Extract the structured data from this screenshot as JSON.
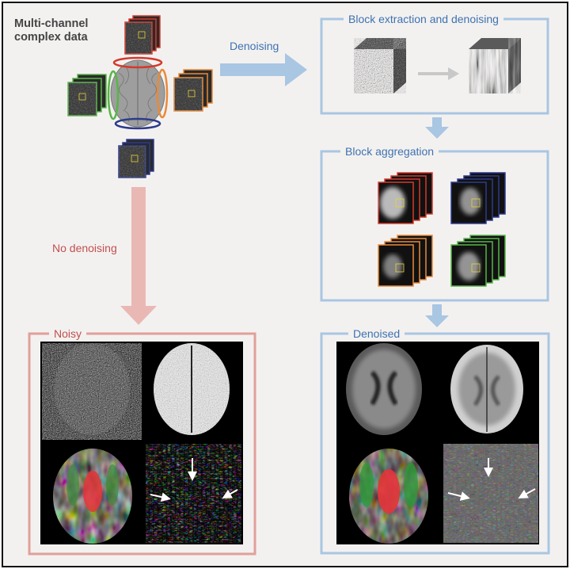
{
  "title_line1": "Multi-channel",
  "title_line2": "complex data",
  "label_denoising": "Denoising",
  "label_no_denoising": "No denoising",
  "box_block_extraction": "Block extraction and denoising",
  "box_block_aggregation": "Block aggregation",
  "box_noisy": "Noisy",
  "box_denoised": "Denoised",
  "colors": {
    "blue_accent": "#3e72b0",
    "blue_arrow": "#a9c6e2",
    "blue_frame": "#8fb2d8",
    "red_accent": "#c0504d",
    "red_arrow": "#eab8b4",
    "red_frame": "#e0a09a",
    "channel_red": "#d33a2c",
    "channel_green": "#58b648",
    "channel_orange": "#e88a3a",
    "channel_blue": "#2d3a8c"
  },
  "icons": [
    "brain-icon",
    "image-stack-icon",
    "noise-cube-icon",
    "mri-image-icon",
    "white-arrow-icon"
  ]
}
